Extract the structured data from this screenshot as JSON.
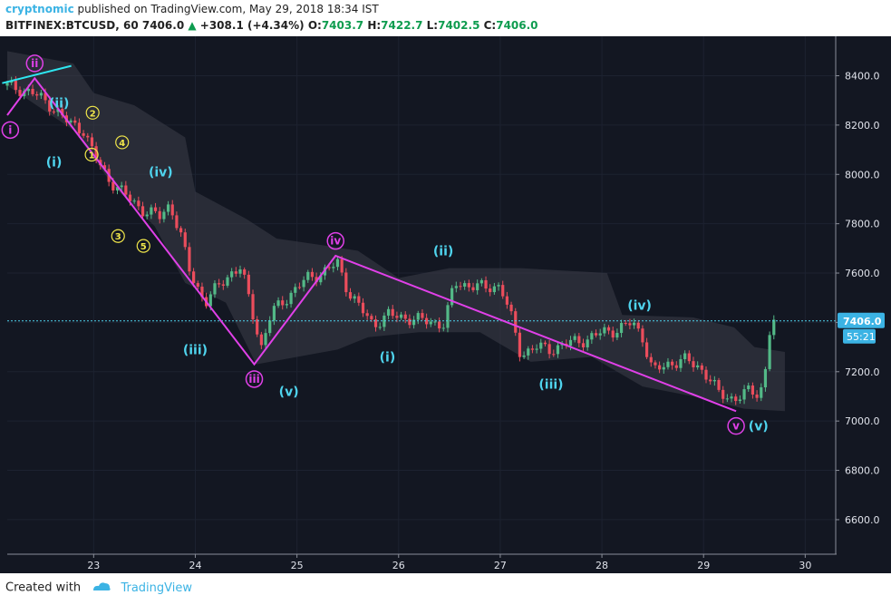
{
  "header": {
    "author": "cryptnomic",
    "published_text": "published on TradingView.com, May 29, 2018 18:34 IST",
    "symbol": "BITFINEX:BTCUSD, 60",
    "last": "7406.0",
    "change": "+308.1 (+4.34%)",
    "o_label": "O:",
    "o_value": "7403.7",
    "h_label": "H:",
    "h_value": "7422.7",
    "l_label": "L:",
    "l_value": "7402.5",
    "c_label": "C:",
    "c_value": "7406.0"
  },
  "footer": {
    "created_with": "Created with",
    "brand": "TradingView"
  },
  "chart_data": {
    "type": "candlestick",
    "title": "",
    "xlabel": "",
    "ylabel": "",
    "x_ticks": [
      "23",
      "24",
      "25",
      "26",
      "27",
      "28",
      "29",
      "30"
    ],
    "x_range": [
      22.15,
      30.3
    ],
    "y_range": [
      6460,
      8560
    ],
    "y_ticks": [
      6600,
      6800,
      7000,
      7200,
      7400,
      7600,
      7800,
      8000,
      8200,
      8400
    ],
    "last_price": {
      "value": 7406.0,
      "label": "7406.0",
      "countdown": "55:21"
    },
    "colors": {
      "background": "#131722",
      "up": "#53b987",
      "down": "#eb4d5c",
      "wave_line": "#e040e8",
      "trend_line": "#2ee6f0",
      "wave_label": "#4fd4ee",
      "minor_label": "#f0e64a",
      "cloud": "#3d3e48"
    },
    "price_path": [
      [
        22.15,
        8360
      ],
      [
        22.4,
        8330
      ],
      [
        22.55,
        8290
      ],
      [
        22.75,
        8210
      ],
      [
        22.9,
        8180
      ],
      [
        23.0,
        8080
      ],
      [
        23.15,
        7980
      ],
      [
        23.3,
        7920
      ],
      [
        23.5,
        7850
      ],
      [
        23.65,
        7830
      ],
      [
        23.75,
        7880
      ],
      [
        23.85,
        7760
      ],
      [
        23.95,
        7600
      ],
      [
        24.1,
        7480
      ],
      [
        24.25,
        7560
      ],
      [
        24.35,
        7600
      ],
      [
        24.45,
        7620
      ],
      [
        24.55,
        7460
      ],
      [
        24.65,
        7300
      ],
      [
        24.75,
        7440
      ],
      [
        24.95,
        7520
      ],
      [
        25.1,
        7580
      ],
      [
        25.25,
        7600
      ],
      [
        25.4,
        7640
      ],
      [
        25.5,
        7530
      ],
      [
        25.6,
        7470
      ],
      [
        25.75,
        7390
      ],
      [
        25.9,
        7430
      ],
      [
        26.05,
        7420
      ],
      [
        26.2,
        7410
      ],
      [
        26.35,
        7400
      ],
      [
        26.45,
        7390
      ],
      [
        26.55,
        7560
      ],
      [
        26.7,
        7550
      ],
      [
        26.85,
        7540
      ],
      [
        27.0,
        7550
      ],
      [
        27.1,
        7430
      ],
      [
        27.2,
        7270
      ],
      [
        27.35,
        7300
      ],
      [
        27.5,
        7290
      ],
      [
        27.7,
        7320
      ],
      [
        27.85,
        7330
      ],
      [
        28.0,
        7360
      ],
      [
        28.15,
        7370
      ],
      [
        28.3,
        7400
      ],
      [
        28.4,
        7340
      ],
      [
        28.5,
        7200
      ],
      [
        28.65,
        7230
      ],
      [
        28.8,
        7250
      ],
      [
        28.95,
        7220
      ],
      [
        29.05,
        7180
      ],
      [
        29.15,
        7110
      ],
      [
        29.3,
        7090
      ],
      [
        29.45,
        7120
      ],
      [
        29.55,
        7110
      ],
      [
        29.6,
        7180
      ],
      [
        29.66,
        7400
      ],
      [
        29.72,
        7406
      ]
    ],
    "cloud_upper": [
      [
        22.15,
        8500
      ],
      [
        22.8,
        8450
      ],
      [
        23.0,
        8330
      ],
      [
        23.4,
        8280
      ],
      [
        23.9,
        8150
      ],
      [
        24.0,
        7930
      ],
      [
        24.5,
        7820
      ],
      [
        24.8,
        7740
      ],
      [
        25.3,
        7710
      ],
      [
        25.6,
        7690
      ],
      [
        26.0,
        7580
      ],
      [
        26.5,
        7620
      ],
      [
        27.2,
        7620
      ],
      [
        28.05,
        7600
      ],
      [
        28.2,
        7430
      ],
      [
        28.9,
        7420
      ],
      [
        29.3,
        7380
      ],
      [
        29.5,
        7300
      ],
      [
        29.8,
        7280
      ]
    ],
    "cloud_lower": [
      [
        22.15,
        8360
      ],
      [
        22.8,
        8180
      ],
      [
        23.2,
        7950
      ],
      [
        23.6,
        7790
      ],
      [
        23.9,
        7560
      ],
      [
        24.3,
        7480
      ],
      [
        24.6,
        7230
      ],
      [
        25.0,
        7260
      ],
      [
        25.4,
        7290
      ],
      [
        25.7,
        7340
      ],
      [
        26.2,
        7360
      ],
      [
        26.8,
        7360
      ],
      [
        27.3,
        7240
      ],
      [
        27.9,
        7260
      ],
      [
        28.4,
        7140
      ],
      [
        28.9,
        7100
      ],
      [
        29.4,
        7050
      ],
      [
        29.8,
        7040
      ]
    ],
    "waves": [
      {
        "name": "primary",
        "points": [
          [
            22.15,
            8240
          ],
          [
            22.42,
            8390
          ],
          [
            24.58,
            7230
          ],
          [
            25.38,
            7670
          ],
          [
            29.32,
            7040
          ]
        ]
      },
      {
        "name": "trendline",
        "color": "cyan",
        "points": [
          [
            22.1,
            8370
          ],
          [
            22.78,
            8440
          ]
        ]
      }
    ],
    "annotations": [
      {
        "text": "ii",
        "x": 22.42,
        "y": 8450,
        "style": "circle"
      },
      {
        "text": "i",
        "x": 22.18,
        "y": 8180,
        "style": "circle"
      },
      {
        "text": "(ii)",
        "x": 22.66,
        "y": 8290,
        "style": "cyan"
      },
      {
        "text": "(i)",
        "x": 22.61,
        "y": 8050,
        "style": "cyan"
      },
      {
        "text": "2",
        "x": 22.99,
        "y": 8250,
        "style": "yellow"
      },
      {
        "text": "1",
        "x": 22.98,
        "y": 8080,
        "style": "yellow"
      },
      {
        "text": "4",
        "x": 23.28,
        "y": 8130,
        "style": "yellow"
      },
      {
        "text": "3",
        "x": 23.24,
        "y": 7750,
        "style": "yellow"
      },
      {
        "text": "5",
        "x": 23.49,
        "y": 7710,
        "style": "yellow"
      },
      {
        "text": "(iv)",
        "x": 23.66,
        "y": 8010,
        "style": "cyan"
      },
      {
        "text": "(iii)",
        "x": 24.0,
        "y": 7290,
        "style": "cyan"
      },
      {
        "text": "iii",
        "x": 24.58,
        "y": 7170,
        "style": "circle"
      },
      {
        "text": "(v)",
        "x": 24.92,
        "y": 7120,
        "style": "cyan"
      },
      {
        "text": "iv",
        "x": 25.38,
        "y": 7730,
        "style": "circle"
      },
      {
        "text": "(i)",
        "x": 25.89,
        "y": 7260,
        "style": "cyan"
      },
      {
        "text": "(ii)",
        "x": 26.44,
        "y": 7690,
        "style": "cyan"
      },
      {
        "text": "(iii)",
        "x": 27.5,
        "y": 7150,
        "style": "cyan"
      },
      {
        "text": "(iv)",
        "x": 28.37,
        "y": 7470,
        "style": "cyan"
      },
      {
        "text": "v",
        "x": 29.32,
        "y": 6980,
        "style": "circle"
      },
      {
        "text": "(v)",
        "x": 29.54,
        "y": 6980,
        "style": "cyan"
      }
    ]
  }
}
